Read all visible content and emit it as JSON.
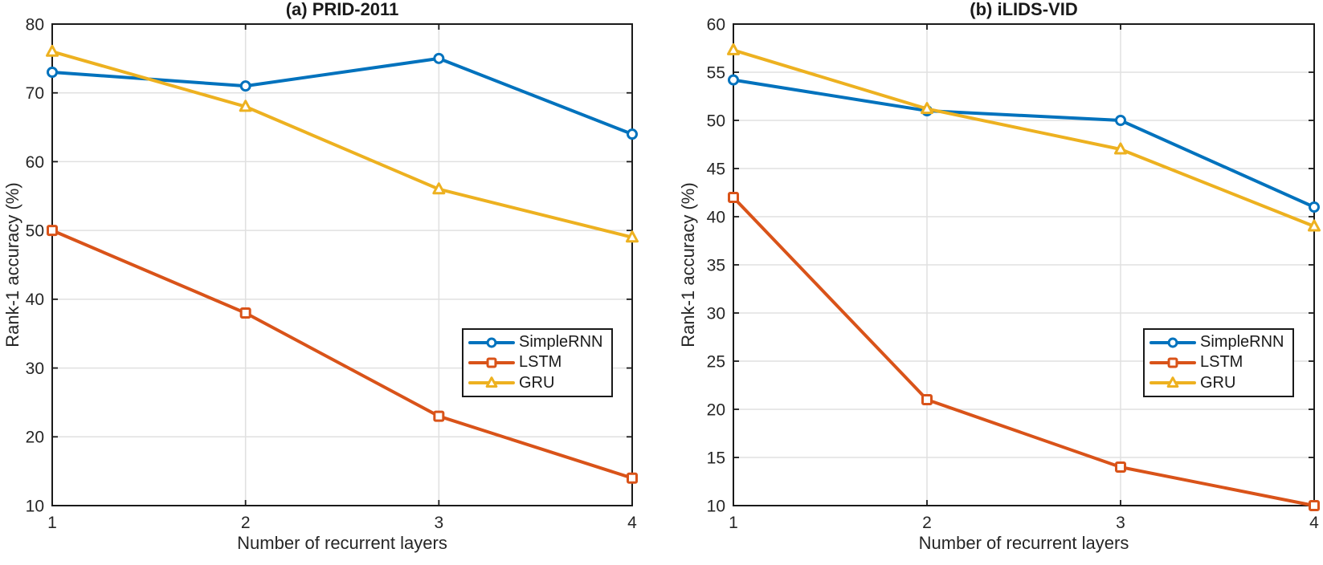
{
  "chart_data": [
    {
      "type": "line",
      "panel_label": "a",
      "title": "(a) PRID-2011",
      "xlabel": "Number of recurrent layers",
      "ylabel": "Rank-1 accuracy (%)",
      "x": [
        1,
        2,
        3,
        4
      ],
      "xticks": [
        1,
        2,
        3,
        4
      ],
      "xlim": [
        1,
        4
      ],
      "ylim": [
        10,
        80
      ],
      "yticks": [
        10,
        20,
        30,
        40,
        50,
        60,
        70,
        80
      ],
      "grid": true,
      "legend_position": "right-center",
      "axis_color": "#1a1a1a",
      "grid_color": "#e0e0e0",
      "series": [
        {
          "name": "SimpleRNN",
          "color": "#0072BD",
          "marker": "circle",
          "values": [
            73,
            71,
            75,
            64
          ]
        },
        {
          "name": "LSTM",
          "color": "#D95319",
          "marker": "square",
          "values": [
            50,
            38,
            23,
            14
          ]
        },
        {
          "name": "GRU",
          "color": "#EDB120",
          "marker": "triangle",
          "values": [
            76,
            68,
            56,
            49
          ]
        }
      ]
    },
    {
      "type": "line",
      "panel_label": "b",
      "title": "(b) iLIDS-VID",
      "xlabel": "Number of recurrent layers",
      "ylabel": "Rank-1 accuracy (%)",
      "x": [
        1,
        2,
        3,
        4
      ],
      "xticks": [
        1,
        2,
        3,
        4
      ],
      "xlim": [
        1,
        4
      ],
      "ylim": [
        10,
        60
      ],
      "yticks": [
        10,
        15,
        20,
        25,
        30,
        35,
        40,
        45,
        50,
        55,
        60
      ],
      "grid": true,
      "legend_position": "right-center",
      "axis_color": "#1a1a1a",
      "grid_color": "#e0e0e0",
      "series": [
        {
          "name": "SimpleRNN",
          "color": "#0072BD",
          "marker": "circle",
          "values": [
            54.2,
            51,
            50,
            41
          ]
        },
        {
          "name": "LSTM",
          "color": "#D95319",
          "marker": "square",
          "values": [
            42,
            21,
            14,
            10
          ]
        },
        {
          "name": "GRU",
          "color": "#EDB120",
          "marker": "triangle",
          "values": [
            57.3,
            51.2,
            47,
            39
          ]
        }
      ]
    }
  ]
}
